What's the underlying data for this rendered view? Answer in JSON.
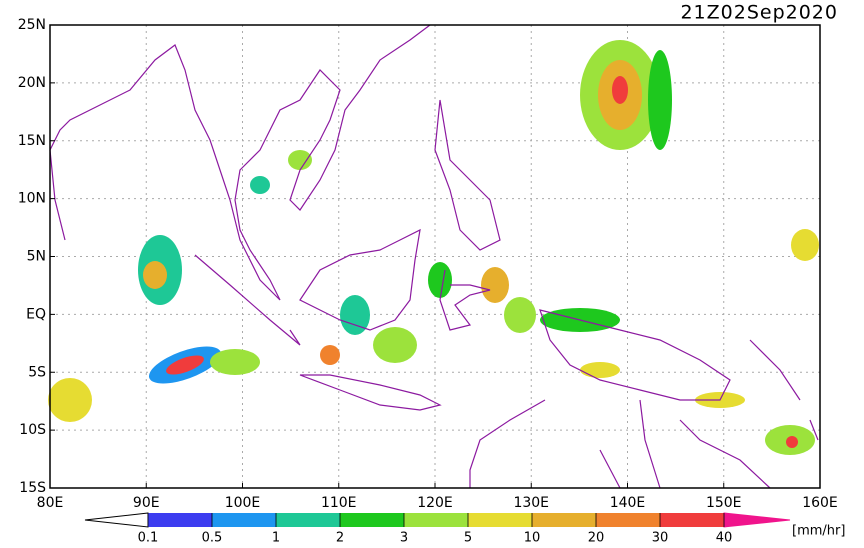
{
  "header": {
    "title": "21Z02Sep2020"
  },
  "map": {
    "lonlim": [
      80,
      160
    ],
    "latlim": [
      -15,
      25
    ],
    "lon_ticks": [
      {
        "value": 80,
        "label": "80E"
      },
      {
        "value": 90,
        "label": "90E"
      },
      {
        "value": 100,
        "label": "100E"
      },
      {
        "value": 110,
        "label": "110E"
      },
      {
        "value": 120,
        "label": "120E"
      },
      {
        "value": 130,
        "label": "130E"
      },
      {
        "value": 140,
        "label": "140E"
      },
      {
        "value": 150,
        "label": "150E"
      },
      {
        "value": 160,
        "label": "160E"
      }
    ],
    "lat_ticks": [
      {
        "value": 25,
        "label": "25N"
      },
      {
        "value": 20,
        "label": "20N"
      },
      {
        "value": 15,
        "label": "15N"
      },
      {
        "value": 10,
        "label": "10N"
      },
      {
        "value": 5,
        "label": "5N"
      },
      {
        "value": 0,
        "label": "EQ"
      },
      {
        "value": -5,
        "label": "5S"
      },
      {
        "value": -10,
        "label": "10S"
      },
      {
        "value": -15,
        "label": "15S"
      }
    ],
    "grid": true
  },
  "colorbar": {
    "levels": [
      0.1,
      0.5,
      1,
      2,
      3,
      5,
      10,
      20,
      30,
      40
    ],
    "colors": [
      "#ffffff",
      "#3c3cf0",
      "#1e96f0",
      "#1ec896",
      "#1ec81e",
      "#9ce23c",
      "#e6dc32",
      "#e6af2d",
      "#f0822d",
      "#f03c3c",
      "#f0148c"
    ],
    "units": "[mm/hr]"
  }
}
